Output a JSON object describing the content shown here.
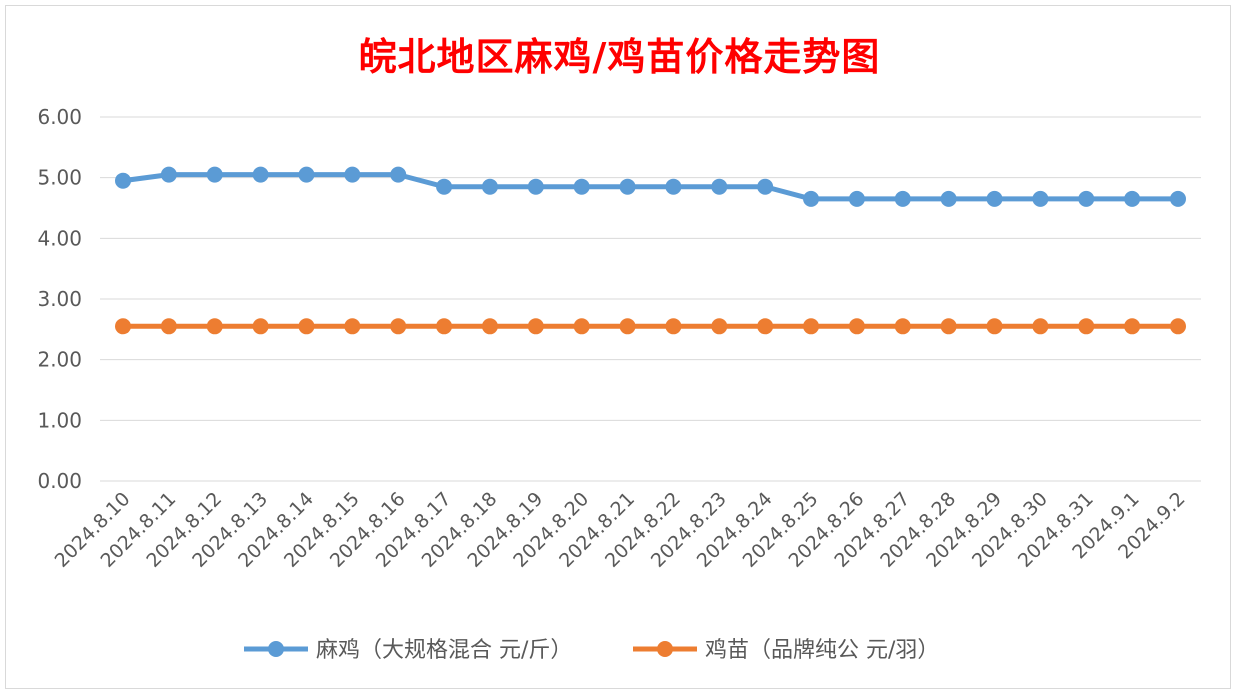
{
  "chart_data": {
    "type": "line",
    "title": "皖北地区麻鸡/鸡苗价格走势图",
    "categories": [
      "2024.8.10",
      "2024.8.11",
      "2024.8.12",
      "2024.8.13",
      "2024.8.14",
      "2024.8.15",
      "2024.8.16",
      "2024.8.17",
      "2024.8.18",
      "2024.8.19",
      "2024.8.20",
      "2024.8.21",
      "2024.8.22",
      "2024.8.23",
      "2024.8.24",
      "2024.8.25",
      "2024.8.26",
      "2024.8.27",
      "2024.8.28",
      "2024.8.29",
      "2024.8.30",
      "2024.8.31",
      "2024.9.1",
      "2024.9.2"
    ],
    "y_ticks": [
      "0.00",
      "1.00",
      "2.00",
      "3.00",
      "4.00",
      "5.00",
      "6.00"
    ],
    "ylim": [
      0,
      6
    ],
    "grid": true,
    "legend_position": "bottom",
    "title_color": "#ff0000",
    "series": [
      {
        "name": "麻鸡（大规格混合 元/斤）",
        "color": "#5b9bd5",
        "values": [
          4.95,
          5.05,
          5.05,
          5.05,
          5.05,
          5.05,
          5.05,
          4.85,
          4.85,
          4.85,
          4.85,
          4.85,
          4.85,
          4.85,
          4.85,
          4.65,
          4.65,
          4.65,
          4.65,
          4.65,
          4.65,
          4.65,
          4.65,
          4.65
        ]
      },
      {
        "name": "鸡苗（品牌纯公 元/羽）",
        "color": "#ed7d31",
        "values": [
          2.55,
          2.55,
          2.55,
          2.55,
          2.55,
          2.55,
          2.55,
          2.55,
          2.55,
          2.55,
          2.55,
          2.55,
          2.55,
          2.55,
          2.55,
          2.55,
          2.55,
          2.55,
          2.55,
          2.55,
          2.55,
          2.55,
          2.55,
          2.55
        ]
      }
    ]
  }
}
